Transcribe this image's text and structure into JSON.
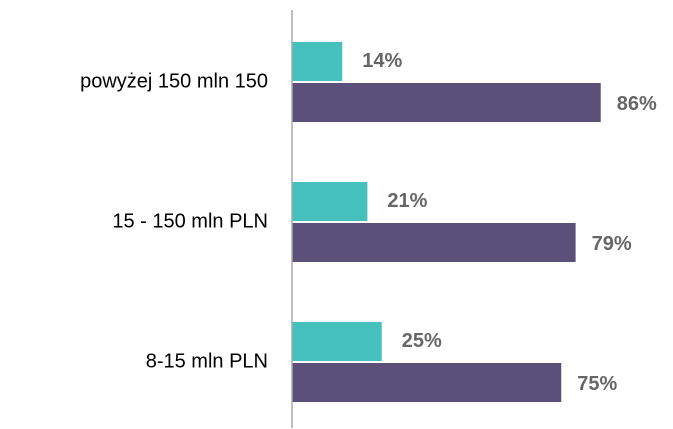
{
  "chart_data": {
    "type": "bar",
    "orientation": "horizontal",
    "categories": [
      "powyżej 150 mln 150",
      "15 - 150 mln PLN",
      "8-15 mln PLN"
    ],
    "series": [
      {
        "color": "#45c0bd",
        "values": [
          14,
          21,
          25
        ],
        "value_labels": [
          "14%",
          "21%",
          "25%"
        ]
      },
      {
        "color": "#5a5079",
        "values": [
          86,
          79,
          75
        ],
        "value_labels": [
          "86%",
          "79%",
          "75%"
        ]
      }
    ],
    "xlim": [
      0,
      100
    ],
    "grid": false
  }
}
